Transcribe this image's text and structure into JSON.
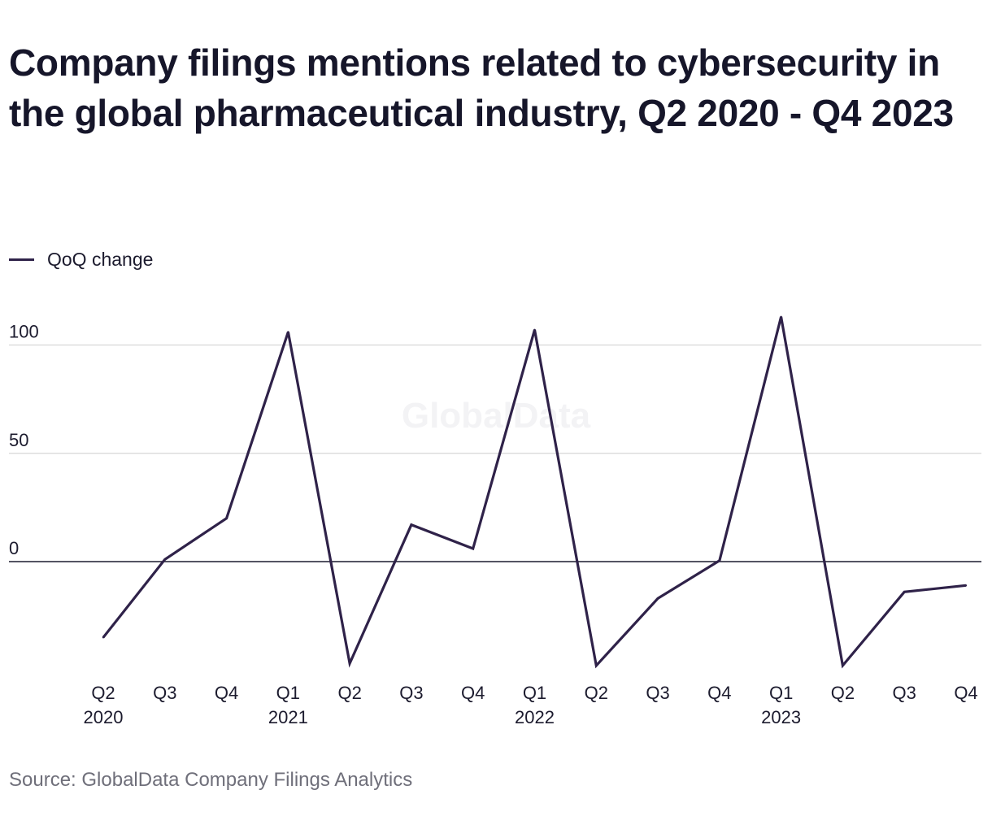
{
  "title": "Company filings mentions related to cybersecurity in the global pharmaceutical industry, Q2 2020 - Q4 2023",
  "legend": {
    "label": "QoQ change"
  },
  "watermark": "GlobalData",
  "source": "Source: GlobalData Company Filings Analytics",
  "colors": {
    "line": "#2f2249",
    "grid": "#d6d6d6",
    "zero": "#1c1b2e",
    "text": "#1c1b2e"
  },
  "chart_data": {
    "type": "line",
    "title": "Company filings mentions related to cybersecurity in the global pharmaceutical industry, Q2 2020 - Q4 2023",
    "xlabel": "",
    "ylabel": "",
    "ylim": [
      -50,
      120
    ],
    "yticks": [
      0,
      50,
      100
    ],
    "grid": true,
    "legend_position": "top-left",
    "categories": [
      "Q2 2020",
      "Q3 2020",
      "Q4 2020",
      "Q1 2021",
      "Q2 2021",
      "Q3 2021",
      "Q4 2021",
      "Q1 2022",
      "Q2 2022",
      "Q3 2022",
      "Q4 2022",
      "Q1 2023",
      "Q2 2023",
      "Q3 2023",
      "Q4 2023"
    ],
    "x_tick_labels": [
      [
        "Q2",
        "2020"
      ],
      [
        "Q3",
        ""
      ],
      [
        "Q4",
        ""
      ],
      [
        "Q1",
        "2021"
      ],
      [
        "Q2",
        ""
      ],
      [
        "Q3",
        ""
      ],
      [
        "Q4",
        ""
      ],
      [
        "Q1",
        "2022"
      ],
      [
        "Q2",
        ""
      ],
      [
        "Q3",
        ""
      ],
      [
        "Q4",
        ""
      ],
      [
        "Q1",
        "2023"
      ],
      [
        "Q2",
        ""
      ],
      [
        "Q3",
        ""
      ],
      [
        "Q4",
        ""
      ]
    ],
    "series": [
      {
        "name": "QoQ change",
        "values": [
          -35,
          1,
          20,
          106,
          -47,
          17,
          6,
          107,
          -48,
          -17,
          0.5,
          113,
          -48,
          -14,
          -11
        ]
      }
    ]
  }
}
